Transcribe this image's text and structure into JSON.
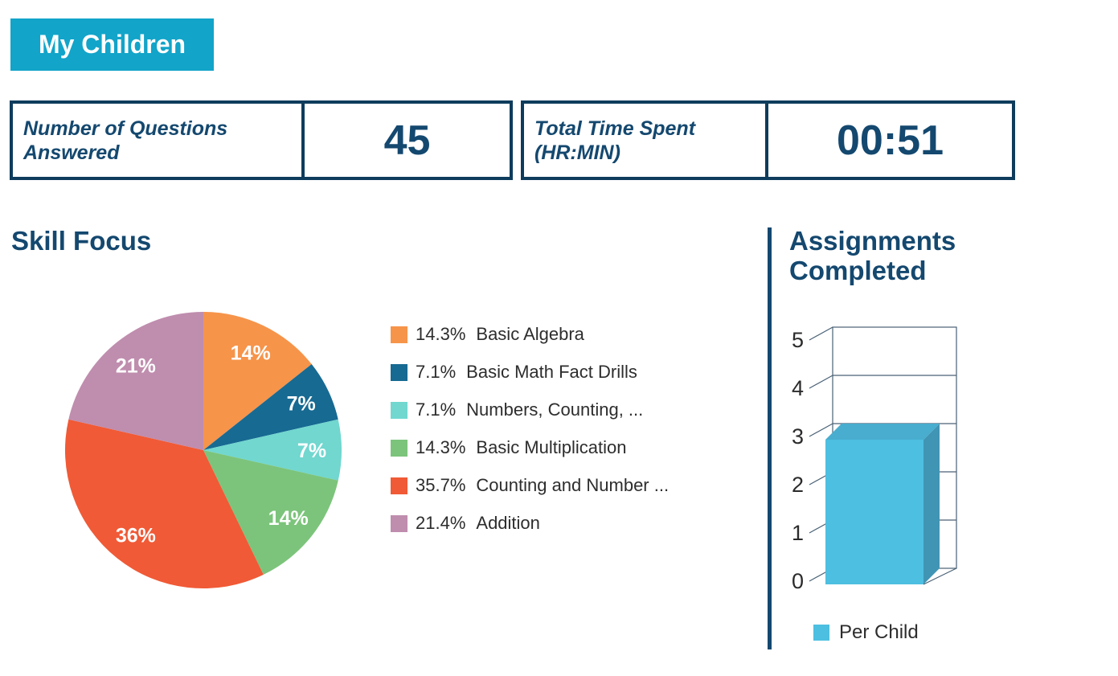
{
  "colors": {
    "navy_text": "#14486F",
    "box_border": "#0E3C5C",
    "button_bg": "#12A4C9",
    "axis_line": "#4A6276",
    "legend_text": "#2D2D2D"
  },
  "header": {
    "button_label": "My Children"
  },
  "stats": [
    {
      "label": "Number of Questions Answered",
      "value": "45"
    },
    {
      "label": "Total Time Spent (HR:MIN)",
      "value": "00:51"
    }
  ],
  "chart_data": [
    {
      "type": "pie",
      "title": "Skill Focus",
      "direction": "clockwise",
      "start_angle_deg": 0,
      "slice_label_color": "#FFFFFF",
      "legend_position": "right",
      "slices": [
        {
          "name": "Basic Algebra",
          "percent": 14.3,
          "pct_label": "14.3%",
          "slice_label": "14%",
          "color": "#F6944A"
        },
        {
          "name": "Basic Math Fact Drills",
          "percent": 7.1,
          "pct_label": "7.1%",
          "slice_label": "7%",
          "color": "#176A92"
        },
        {
          "name": "Numbers, Counting, ...",
          "percent": 7.1,
          "pct_label": "7.1%",
          "slice_label": "7%",
          "color": "#71D7CF"
        },
        {
          "name": "Basic Multiplication",
          "percent": 14.3,
          "pct_label": "14.3%",
          "slice_label": "14%",
          "color": "#7CC47B"
        },
        {
          "name": "Counting and Number ...",
          "percent": 35.7,
          "pct_label": "35.7%",
          "slice_label": "36%",
          "color": "#F05A36"
        },
        {
          "name": "Addition",
          "percent": 21.4,
          "pct_label": "21.4%",
          "slice_label": "21%",
          "color": "#BF8DAE"
        }
      ]
    },
    {
      "type": "bar",
      "title": "Assignments Completed",
      "style": "3d",
      "categories": [
        "Per Child"
      ],
      "series": [
        {
          "name": "Per Child",
          "values": [
            3
          ]
        }
      ],
      "ylim": [
        0,
        5
      ],
      "yticks": [
        0,
        1,
        2,
        3,
        4,
        5
      ],
      "grid": true,
      "legend_position": "bottom",
      "bar_colors": {
        "front": "#4DBFE1",
        "top": "#48ADCF",
        "side": "#4095B4"
      }
    }
  ]
}
